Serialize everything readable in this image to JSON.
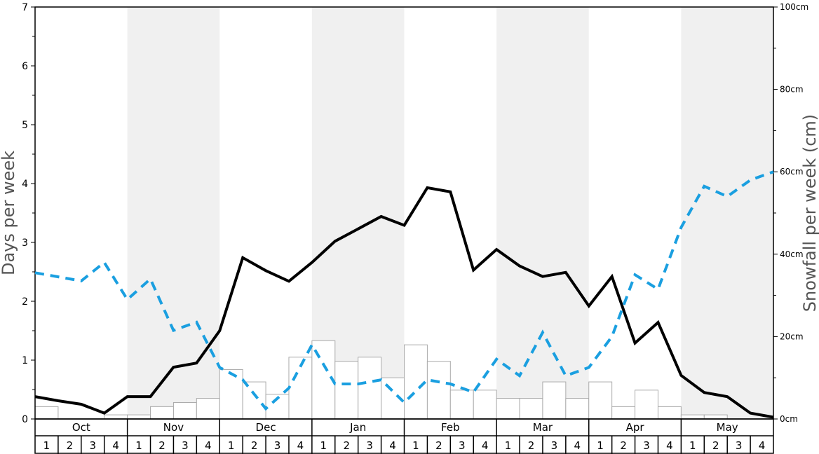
{
  "chart_data": {
    "type": "bar+line",
    "title": "",
    "ylabel_left": "Days per week",
    "ylabel_right": "Snowfall per week (cm)",
    "ylim_left": [
      0,
      7
    ],
    "ylim_right": [
      0,
      100
    ],
    "left_ticks": [
      "0",
      "1",
      "2",
      "3",
      "4",
      "5",
      "6",
      "7"
    ],
    "right_ticks": [
      "0cm",
      "20cm",
      "40cm",
      "60cm",
      "80cm",
      "100cm"
    ],
    "months": [
      "Oct",
      "Nov",
      "Dec",
      "Jan",
      "Feb",
      "Mar",
      "Apr",
      "May"
    ],
    "week_labels": [
      "1",
      "2",
      "3",
      "4"
    ],
    "shaded_months": [
      "Nov",
      "Jan",
      "Mar",
      "May"
    ],
    "shade_color": "#f0f0f0",
    "series": [
      {
        "kind": "bar",
        "axis": "left",
        "color": "#ffffff",
        "stroke": "#aaaaaa",
        "values": [
          0.21,
          0,
          0,
          0.07,
          0.07,
          0.21,
          0.28,
          0.35,
          0.84,
          0.63,
          0.42,
          1.05,
          1.33,
          0.98,
          1.05,
          0.7,
          1.26,
          0.98,
          0.49,
          0.49,
          0.35,
          0.35,
          0.63,
          0.35,
          0.63,
          0.21,
          0.49,
          0.21,
          0.07,
          0.07,
          0,
          0
        ]
      },
      {
        "kind": "line",
        "axis": "left",
        "style": "solid",
        "color": "#000000",
        "values": [
          0.38,
          0.31,
          0.25,
          0.1,
          0.38,
          0.38,
          0.88,
          0.95,
          1.5,
          2.74,
          2.52,
          2.34,
          2.66,
          3.02,
          3.23,
          3.44,
          3.29,
          3.93,
          3.86,
          2.53,
          2.88,
          2.6,
          2.42,
          2.49,
          1.92,
          2.42,
          1.29,
          1.64,
          0.74,
          0.45,
          0.38,
          0.1,
          0.03
        ]
      },
      {
        "kind": "line",
        "axis": "right",
        "style": "dashed",
        "color": "#1a9fe0",
        "values": [
          35.5,
          34.5,
          33.5,
          38.0,
          29.0,
          34.0,
          21.5,
          23.5,
          12.5,
          9.5,
          2.5,
          7.5,
          18.0,
          8.5,
          8.5,
          9.5,
          4.0,
          9.5,
          8.5,
          6.5,
          14.5,
          10.5,
          21.0,
          10.5,
          12.5,
          20.0,
          35.0,
          31.5,
          46.5,
          56.5,
          54.0,
          58.0,
          60.0
        ]
      }
    ]
  }
}
